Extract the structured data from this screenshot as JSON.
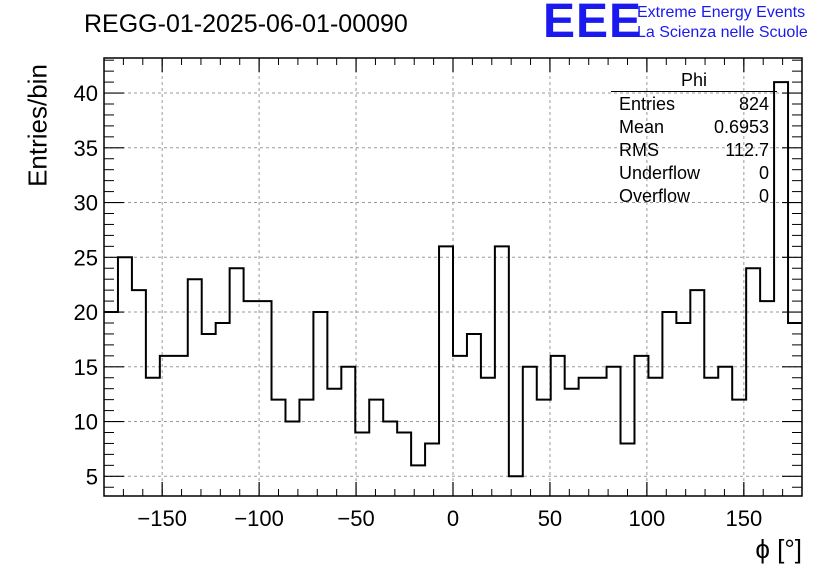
{
  "header": {
    "run_title": "REGG-01-2025-06-01-00090",
    "logo_mark": "EEE",
    "logo_line1": "Extreme Energy Events",
    "logo_line2": "La Scienza nelle Scuole",
    "logo_color": "#1a1aee"
  },
  "stats_box": {
    "title": "Phi",
    "rows": [
      {
        "label": "Entries",
        "value": "824"
      },
      {
        "label": "Mean",
        "value": "0.6953"
      },
      {
        "label": "RMS",
        "value": "112.7"
      },
      {
        "label": "Underflow",
        "value": "0"
      },
      {
        "label": "Overflow",
        "value": "0"
      }
    ]
  },
  "chart_data": {
    "type": "histogram",
    "title": "REGG-01-2025-06-01-00090",
    "xlabel": "ϕ [°]",
    "ylabel": "Entries/bin",
    "xlim": [
      -180,
      180
    ],
    "ylim": [
      3.2,
      43.2
    ],
    "bin_width": 7.2,
    "grid": true,
    "x_ticks": [
      -150,
      -100,
      -50,
      0,
      50,
      100,
      150
    ],
    "x_tick_labels": [
      "−150",
      "−100",
      "−50",
      "0",
      "50",
      "100",
      "150"
    ],
    "y_ticks": [
      5,
      10,
      15,
      20,
      25,
      30,
      35,
      40
    ],
    "y_tick_labels": [
      "5",
      "10",
      "15",
      "20",
      "25",
      "30",
      "35",
      "40"
    ],
    "values": [
      20,
      25,
      22,
      14,
      16,
      16,
      23,
      18,
      19,
      24,
      21,
      21,
      12,
      10,
      12,
      20,
      13,
      15,
      9,
      12,
      10,
      9,
      6,
      8,
      26,
      16,
      18,
      14,
      26,
      5,
      15,
      12,
      16,
      13,
      14,
      14,
      15,
      8,
      16,
      14,
      20,
      19,
      22,
      14,
      15,
      12,
      24,
      21,
      41,
      19
    ],
    "line_color": "#000000"
  }
}
